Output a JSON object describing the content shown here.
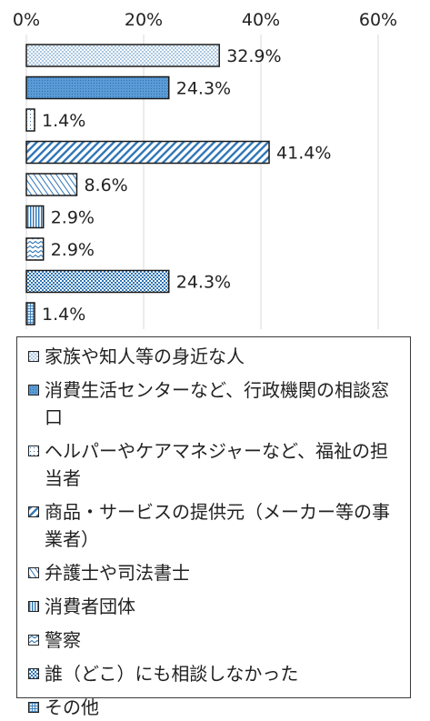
{
  "chart_data": {
    "type": "bar",
    "orientation": "horizontal",
    "categories": [
      "家族や知人等の身近な人",
      "消費生活センターなど、行政機関の相談窓口",
      "ヘルパーやケアマネジャーなど、福祉の担当者",
      "商品・サービスの提供元（メーカー等の事業者）",
      "弁護士や司法書士",
      "消費者団体",
      "警察",
      "誰（どこ）にも相談しなかった",
      "その他"
    ],
    "values": [
      32.9,
      24.3,
      1.4,
      41.4,
      8.6,
      2.9,
      2.9,
      24.3,
      1.4
    ],
    "data_labels": [
      "32.9%",
      "24.3%",
      "1.4%",
      "41.4%",
      "8.6%",
      "2.9%",
      "2.9%",
      "24.3%",
      "1.4%"
    ],
    "xlim": [
      0,
      60
    ],
    "x_ticks": [
      "0%",
      "20%",
      "40%",
      "60%"
    ],
    "axis_position": "top",
    "grid": true,
    "legend_position": "bottom",
    "patterns": [
      "dots",
      "dense-dots",
      "light-dots",
      "diagonal-hatch",
      "light-diagonal",
      "vertical-lines",
      "zigzag",
      "checker",
      "grid-dots"
    ],
    "colors": {
      "pattern": "#2e75b6",
      "fill": "#dde9f6",
      "border": "#1a1a1a",
      "grid": "#d9d9d9",
      "text": "#222222"
    }
  }
}
